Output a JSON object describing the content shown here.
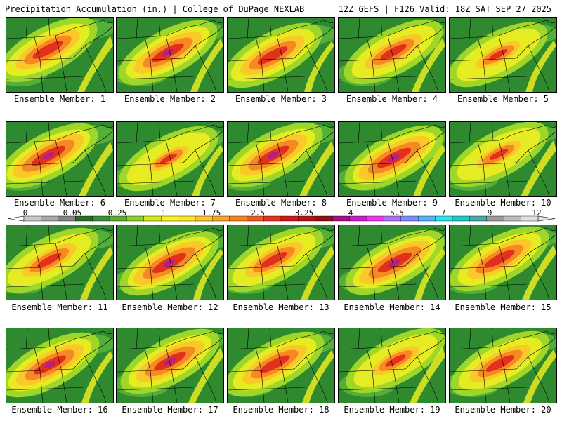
{
  "header": {
    "left_title": "Precipitation Accumulation (in.) | College of DuPage NEXLAB",
    "right_title": "12Z GEFS | F126 Valid: 18Z SAT SEP 27 2025"
  },
  "panels": [
    {
      "label": "Ensemble Member: 1",
      "intensity": 0.8
    },
    {
      "label": "Ensemble Member: 2",
      "intensity": 0.85
    },
    {
      "label": "Ensemble Member: 3",
      "intensity": 0.8
    },
    {
      "label": "Ensemble Member: 4",
      "intensity": 0.7
    },
    {
      "label": "Ensemble Member: 5",
      "intensity": 0.5
    },
    {
      "label": "Ensemble Member: 6",
      "intensity": 0.9
    },
    {
      "label": "Ensemble Member: 7",
      "intensity": 0.45
    },
    {
      "label": "Ensemble Member: 8",
      "intensity": 0.85
    },
    {
      "label": "Ensemble Member: 9",
      "intensity": 0.9
    },
    {
      "label": "Ensemble Member: 10",
      "intensity": 0.5
    },
    {
      "label": "Ensemble Member: 11",
      "intensity": 0.65
    },
    {
      "label": "Ensemble Member: 12",
      "intensity": 0.9
    },
    {
      "label": "Ensemble Member: 13",
      "intensity": 0.7
    },
    {
      "label": "Ensemble Member: 14",
      "intensity": 0.9
    },
    {
      "label": "Ensemble Member: 15",
      "intensity": 0.8
    },
    {
      "label": "Ensemble Member: 16",
      "intensity": 0.85
    },
    {
      "label": "Ensemble Member: 17",
      "intensity": 0.85
    },
    {
      "label": "Ensemble Member: 18",
      "intensity": 0.8
    },
    {
      "label": "Ensemble Member: 19",
      "intensity": 0.55
    },
    {
      "label": "Ensemble Member: 20",
      "intensity": 0.75
    }
  ],
  "colorbar": {
    "labels": [
      "0",
      "0.05",
      "0.25",
      "1",
      "1.75",
      "2.5",
      "3.25",
      "4",
      "5.5",
      "7",
      "9",
      "12"
    ],
    "colors": [
      "#c9c9c9",
      "#a7a7a7",
      "#858585",
      "#256e25",
      "#3a8f3a",
      "#58b02b",
      "#8fd02a",
      "#d6e51e",
      "#f7f51f",
      "#fbe42c",
      "#fbc42a",
      "#fba52a",
      "#f58221",
      "#ef5b1f",
      "#e8301b",
      "#d01818",
      "#b01515",
      "#8e1010",
      "#a01480",
      "#c81ec8",
      "#e838e8",
      "#b070f0",
      "#7c8cff",
      "#52b4ff",
      "#28e6f0",
      "#22c8c8",
      "#4aa8a8",
      "#9c9c9c",
      "#bdbdbd",
      "#e0e0e0"
    ]
  }
}
